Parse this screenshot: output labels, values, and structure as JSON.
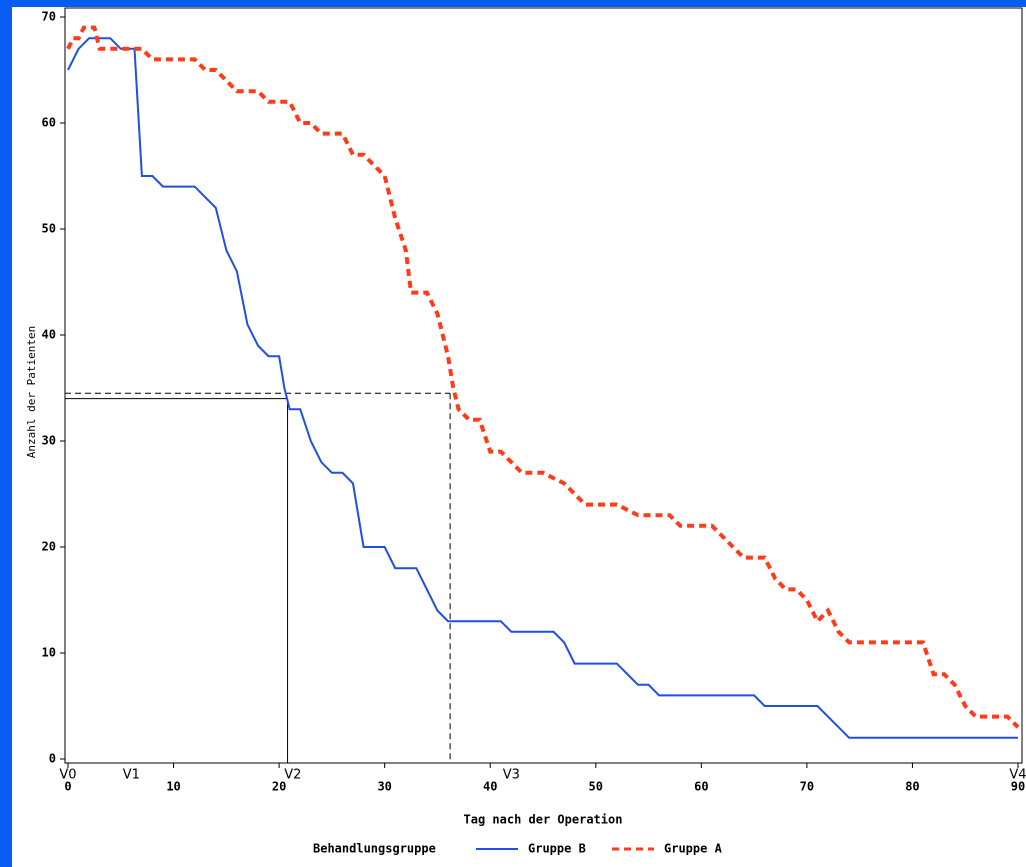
{
  "chart_data": {
    "type": "line",
    "xlabel": "Tag nach der Operation",
    "ylabel": "Anzahl der Patienten",
    "legend_title": "Behandlungsgruppe",
    "xlim": [
      0,
      90
    ],
    "xticks": [
      0,
      10,
      20,
      30,
      40,
      50,
      60,
      70,
      80,
      90
    ],
    "ylim": [
      0,
      70
    ],
    "yticks": [
      0,
      10,
      20,
      30,
      40,
      50,
      60,
      70
    ],
    "annotations": [
      {
        "text": "V0",
        "x": 0
      },
      {
        "text": "V1",
        "x": 6
      },
      {
        "text": "V2",
        "x": 21.3
      },
      {
        "text": "V3",
        "x": 42
      },
      {
        "text": "V4",
        "x": 90
      }
    ],
    "reference_lines": [
      {
        "x": 20.8,
        "y": 34,
        "style": "solid"
      },
      {
        "x": 36.2,
        "y": 34.5,
        "style": "dashed"
      }
    ],
    "series": [
      {
        "name": "Gruppe B",
        "color": "#1e4fe6",
        "style": "solid",
        "x": [
          0,
          1,
          2,
          4,
          5,
          6.3,
          7,
          8,
          9,
          12,
          14,
          15,
          16,
          17,
          18,
          19,
          20,
          20.5,
          21,
          22,
          23,
          24,
          25,
          26,
          27,
          28,
          30,
          31,
          33,
          35,
          36,
          41,
          42,
          46,
          47,
          48,
          52,
          54,
          55,
          56,
          65,
          66,
          71,
          74,
          90
        ],
        "values": [
          65,
          67,
          68,
          68,
          67,
          67,
          55,
          55,
          54,
          54,
          52,
          48,
          46,
          41,
          39,
          38,
          38,
          35,
          33,
          33,
          30,
          28,
          27,
          27,
          26,
          20,
          20,
          18,
          18,
          14,
          13,
          13,
          12,
          12,
          11,
          9,
          9,
          7,
          7,
          6,
          6,
          5,
          5,
          2,
          2
        ]
      },
      {
        "name": "Gruppe A",
        "color": "#ff3b1a",
        "style": "dashed",
        "x": [
          0,
          0.5,
          1,
          1.5,
          2.5,
          3,
          6,
          7,
          8,
          12,
          13,
          14,
          15,
          16,
          18,
          19,
          21,
          22,
          23,
          24,
          26,
          27,
          28,
          29,
          30,
          31,
          32,
          32.5,
          34,
          35,
          36,
          36.5,
          37,
          38,
          39,
          40,
          41,
          43,
          45,
          47,
          48,
          49,
          52,
          54,
          57,
          58,
          61,
          62,
          64,
          66,
          67,
          68,
          69,
          70,
          71,
          72,
          73,
          74,
          81,
          82,
          83,
          84,
          85,
          86,
          89,
          90
        ],
        "values": [
          67,
          68,
          68,
          69,
          69,
          67,
          67,
          67,
          66,
          66,
          65,
          65,
          64,
          63,
          63,
          62,
          62,
          60,
          60,
          59,
          59,
          57,
          57,
          56,
          55,
          51,
          48,
          44,
          44,
          42,
          38,
          35,
          33,
          32,
          32,
          29,
          29,
          27,
          27,
          26,
          25,
          24,
          24,
          23,
          23,
          22,
          22,
          21,
          19,
          19,
          17,
          16,
          16,
          15,
          13,
          14,
          12,
          11,
          11,
          8,
          8,
          7,
          5,
          4,
          4,
          3
        ]
      }
    ]
  }
}
